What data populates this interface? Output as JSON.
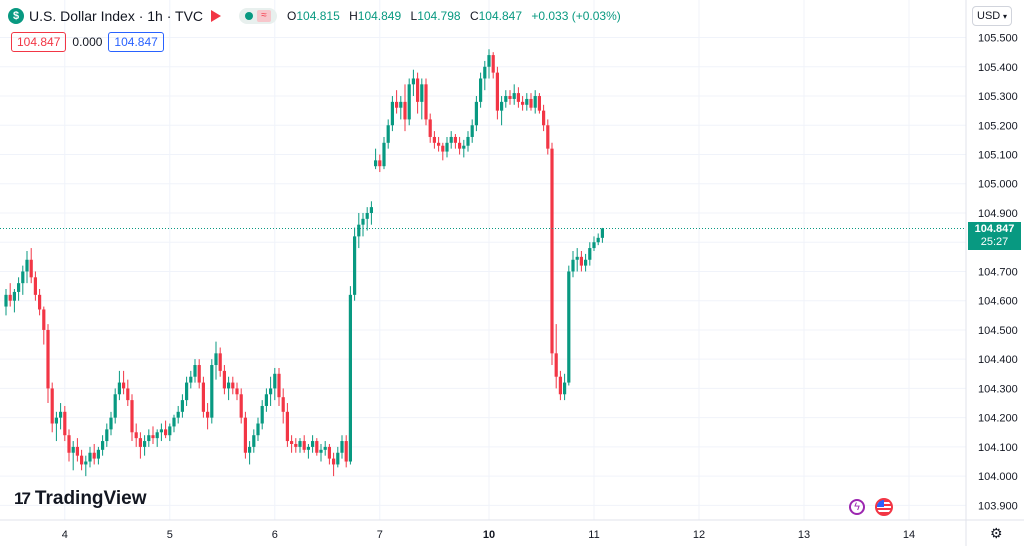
{
  "header": {
    "title": "U.S. Dollar Index · 1h · TVC",
    "symbol_glyph": "$",
    "ohlc": {
      "o_label": "O",
      "o": "104.815",
      "h_label": "H",
      "h": "104.849",
      "l_label": "L",
      "l": "104.798",
      "c_label": "C",
      "c": "104.847",
      "change": "+0.033 (+0.03%)"
    }
  },
  "values_row": {
    "left": "104.847",
    "mid": "0.000",
    "right": "104.847"
  },
  "currency": "USD",
  "price_label": {
    "price": "104.847",
    "countdown": "25:27"
  },
  "logo_text": "TradingView",
  "icons": [
    "dollar-icon",
    "flag-icon",
    "dot-icon",
    "wave-icon",
    "chevron-down-icon",
    "logo-icon",
    "bolt-icon",
    "us-flag-icon",
    "gear-icon"
  ],
  "colors": {
    "up": "#089981",
    "down": "#f23645",
    "grid": "#f0f3fa",
    "text": "#131722",
    "accent_blue": "#2962ff"
  },
  "chart_data": {
    "type": "candlestick",
    "title": "",
    "ylim": [
      103.85,
      105.56
    ],
    "yticks": [
      103.9,
      104.0,
      104.1,
      104.2,
      104.3,
      104.4,
      104.5,
      104.6,
      104.7,
      104.8,
      104.9,
      105.0,
      105.1,
      105.2,
      105.3,
      105.4,
      105.5
    ],
    "xticks": [
      {
        "label": "4",
        "index": 14,
        "bold": false
      },
      {
        "label": "5",
        "index": 39,
        "bold": false
      },
      {
        "label": "6",
        "index": 64,
        "bold": false
      },
      {
        "label": "7",
        "index": 89,
        "bold": false
      },
      {
        "label": "10",
        "index": 115,
        "bold": true
      },
      {
        "label": "11",
        "index": 140,
        "bold": false
      },
      {
        "label": "12",
        "index": 165,
        "bold": false
      },
      {
        "label": "13",
        "index": 190,
        "bold": false
      },
      {
        "label": "14",
        "index": 215,
        "bold": false
      }
    ],
    "last_price": 104.847,
    "candles": [
      [
        104.58,
        104.64,
        104.55,
        104.62
      ],
      [
        104.62,
        104.66,
        104.58,
        104.6
      ],
      [
        104.6,
        104.64,
        104.56,
        104.63
      ],
      [
        104.63,
        104.68,
        104.6,
        104.66
      ],
      [
        104.66,
        104.72,
        104.62,
        104.7
      ],
      [
        104.7,
        104.77,
        104.66,
        104.74
      ],
      [
        104.74,
        104.78,
        104.66,
        104.68
      ],
      [
        104.68,
        104.7,
        104.6,
        104.62
      ],
      [
        104.62,
        104.64,
        104.55,
        104.57
      ],
      [
        104.57,
        104.58,
        104.45,
        104.5
      ],
      [
        104.5,
        104.52,
        104.25,
        104.3
      ],
      [
        104.3,
        104.32,
        104.15,
        104.18
      ],
      [
        104.18,
        104.22,
        104.12,
        104.2
      ],
      [
        104.2,
        104.25,
        104.16,
        104.22
      ],
      [
        104.22,
        104.24,
        104.12,
        104.14
      ],
      [
        104.14,
        104.16,
        104.05,
        104.08
      ],
      [
        104.08,
        104.12,
        104.02,
        104.1
      ],
      [
        104.1,
        104.13,
        104.05,
        104.07
      ],
      [
        104.07,
        104.09,
        104.02,
        104.04
      ],
      [
        104.04,
        104.07,
        104.0,
        104.05
      ],
      [
        104.05,
        104.1,
        104.03,
        104.08
      ],
      [
        104.08,
        104.11,
        104.04,
        104.06
      ],
      [
        104.06,
        104.1,
        104.04,
        104.09
      ],
      [
        104.09,
        104.14,
        104.07,
        104.12
      ],
      [
        104.12,
        104.18,
        104.1,
        104.16
      ],
      [
        104.16,
        104.22,
        104.14,
        104.2
      ],
      [
        104.2,
        104.3,
        104.18,
        104.28
      ],
      [
        104.28,
        104.36,
        104.26,
        104.32
      ],
      [
        104.32,
        104.36,
        104.28,
        104.3
      ],
      [
        104.3,
        104.33,
        104.24,
        104.26
      ],
      [
        104.26,
        104.28,
        104.12,
        104.15
      ],
      [
        104.15,
        104.18,
        104.1,
        104.13
      ],
      [
        104.13,
        104.15,
        104.06,
        104.1
      ],
      [
        104.1,
        104.14,
        104.07,
        104.12
      ],
      [
        104.12,
        104.16,
        104.1,
        104.14
      ],
      [
        104.14,
        104.17,
        104.11,
        104.13
      ],
      [
        104.13,
        104.16,
        104.1,
        104.15
      ],
      [
        104.15,
        104.18,
        104.12,
        104.16
      ],
      [
        104.16,
        104.19,
        104.13,
        104.14
      ],
      [
        104.14,
        104.18,
        104.12,
        104.17
      ],
      [
        104.17,
        104.21,
        104.15,
        104.2
      ],
      [
        104.2,
        104.24,
        104.18,
        104.22
      ],
      [
        104.22,
        104.28,
        104.2,
        104.26
      ],
      [
        104.26,
        104.34,
        104.24,
        104.32
      ],
      [
        104.32,
        104.36,
        104.3,
        104.34
      ],
      [
        104.34,
        104.4,
        104.32,
        104.38
      ],
      [
        104.38,
        104.4,
        104.3,
        104.32
      ],
      [
        104.32,
        104.34,
        104.2,
        104.22
      ],
      [
        104.22,
        104.25,
        104.16,
        104.2
      ],
      [
        104.2,
        104.4,
        104.18,
        104.38
      ],
      [
        104.38,
        104.46,
        104.33,
        104.42
      ],
      [
        104.42,
        104.44,
        104.34,
        104.36
      ],
      [
        104.36,
        104.38,
        104.28,
        104.3
      ],
      [
        104.3,
        104.34,
        104.26,
        104.32
      ],
      [
        104.32,
        104.34,
        104.28,
        104.3
      ],
      [
        104.3,
        104.32,
        104.26,
        104.28
      ],
      [
        104.28,
        104.3,
        104.18,
        104.2
      ],
      [
        104.2,
        104.22,
        104.06,
        104.08
      ],
      [
        104.08,
        104.12,
        104.04,
        104.1
      ],
      [
        104.1,
        104.16,
        104.08,
        104.14
      ],
      [
        104.14,
        104.2,
        104.12,
        104.18
      ],
      [
        104.18,
        104.26,
        104.16,
        104.24
      ],
      [
        104.24,
        104.3,
        104.22,
        104.28
      ],
      [
        104.28,
        104.34,
        104.24,
        104.3
      ],
      [
        104.3,
        104.37,
        104.26,
        104.35
      ],
      [
        104.35,
        104.37,
        104.24,
        104.27
      ],
      [
        104.27,
        104.3,
        104.18,
        104.22
      ],
      [
        104.22,
        104.25,
        104.1,
        104.12
      ],
      [
        104.12,
        104.14,
        104.08,
        104.11
      ],
      [
        104.11,
        104.13,
        104.08,
        104.1
      ],
      [
        104.1,
        104.13,
        104.08,
        104.12
      ],
      [
        104.12,
        104.14,
        104.08,
        104.09
      ],
      [
        104.09,
        104.11,
        104.06,
        104.1
      ],
      [
        104.1,
        104.14,
        104.08,
        104.12
      ],
      [
        104.12,
        104.13,
        104.07,
        104.08
      ],
      [
        104.08,
        104.11,
        104.05,
        104.09
      ],
      [
        104.09,
        104.12,
        104.07,
        104.1
      ],
      [
        104.1,
        104.11,
        104.04,
        104.06
      ],
      [
        104.06,
        104.08,
        104.0,
        104.04
      ],
      [
        104.04,
        104.1,
        104.03,
        104.08
      ],
      [
        104.08,
        104.14,
        104.06,
        104.12
      ],
      [
        104.12,
        104.14,
        104.03,
        104.05
      ],
      [
        104.05,
        104.65,
        104.04,
        104.62
      ],
      [
        104.62,
        104.85,
        104.6,
        104.82
      ],
      [
        104.82,
        104.9,
        104.78,
        104.86
      ],
      [
        104.86,
        104.9,
        104.82,
        104.88
      ],
      [
        104.88,
        104.92,
        104.84,
        104.9
      ],
      [
        104.9,
        104.94,
        104.86,
        104.92
      ],
      [
        105.06,
        105.12,
        105.05,
        105.08
      ],
      [
        105.08,
        105.1,
        105.04,
        105.06
      ],
      [
        105.06,
        105.16,
        105.05,
        105.14
      ],
      [
        105.14,
        105.22,
        105.12,
        105.2
      ],
      [
        105.2,
        105.3,
        105.18,
        105.28
      ],
      [
        105.28,
        105.32,
        105.24,
        105.26
      ],
      [
        105.26,
        105.3,
        105.22,
        105.28
      ],
      [
        105.28,
        105.34,
        105.18,
        105.22
      ],
      [
        105.22,
        105.36,
        105.2,
        105.34
      ],
      [
        105.34,
        105.39,
        105.3,
        105.36
      ],
      [
        105.36,
        105.38,
        105.24,
        105.28
      ],
      [
        105.28,
        105.36,
        105.22,
        105.34
      ],
      [
        105.34,
        105.36,
        105.2,
        105.22
      ],
      [
        105.22,
        105.24,
        105.14,
        105.16
      ],
      [
        105.16,
        105.18,
        105.12,
        105.14
      ],
      [
        105.14,
        105.16,
        105.11,
        105.13
      ],
      [
        105.13,
        105.14,
        105.08,
        105.11
      ],
      [
        105.11,
        105.16,
        105.09,
        105.14
      ],
      [
        105.14,
        105.18,
        105.12,
        105.16
      ],
      [
        105.16,
        105.17,
        105.12,
        105.14
      ],
      [
        105.14,
        105.16,
        105.1,
        105.12
      ],
      [
        105.12,
        105.15,
        105.09,
        105.13
      ],
      [
        105.13,
        105.18,
        105.11,
        105.16
      ],
      [
        105.16,
        105.22,
        105.14,
        105.2
      ],
      [
        105.2,
        105.3,
        105.18,
        105.28
      ],
      [
        105.28,
        105.38,
        105.26,
        105.36
      ],
      [
        105.36,
        105.42,
        105.32,
        105.4
      ],
      [
        105.4,
        105.46,
        105.36,
        105.44
      ],
      [
        105.44,
        105.45,
        105.36,
        105.38
      ],
      [
        105.38,
        105.4,
        105.22,
        105.25
      ],
      [
        105.25,
        105.3,
        105.2,
        105.28
      ],
      [
        105.28,
        105.32,
        105.26,
        105.3
      ],
      [
        105.3,
        105.32,
        105.27,
        105.29
      ],
      [
        105.29,
        105.34,
        105.27,
        105.31
      ],
      [
        105.31,
        105.33,
        105.26,
        105.28
      ],
      [
        105.28,
        105.3,
        105.25,
        105.27
      ],
      [
        105.27,
        105.31,
        105.25,
        105.29
      ],
      [
        105.29,
        105.31,
        105.25,
        105.26
      ],
      [
        105.26,
        105.32,
        105.24,
        105.3
      ],
      [
        105.3,
        105.31,
        105.24,
        105.25
      ],
      [
        105.25,
        105.27,
        105.18,
        105.2
      ],
      [
        105.2,
        105.22,
        105.1,
        105.12
      ],
      [
        105.12,
        105.14,
        104.38,
        104.42
      ],
      [
        104.42,
        104.52,
        104.3,
        104.34
      ],
      [
        104.34,
        104.36,
        104.26,
        104.28
      ],
      [
        104.28,
        104.35,
        104.26,
        104.32
      ],
      [
        104.32,
        104.72,
        104.31,
        104.7
      ],
      [
        104.7,
        104.77,
        104.68,
        104.74
      ],
      [
        104.74,
        104.78,
        104.7,
        104.75
      ],
      [
        104.75,
        104.77,
        104.7,
        104.72
      ],
      [
        104.72,
        104.76,
        104.7,
        104.74
      ],
      [
        104.74,
        104.8,
        104.72,
        104.78
      ],
      [
        104.78,
        104.82,
        104.77,
        104.8
      ],
      [
        104.8,
        104.83,
        104.79,
        104.815
      ],
      [
        104.815,
        104.849,
        104.798,
        104.847
      ]
    ]
  }
}
